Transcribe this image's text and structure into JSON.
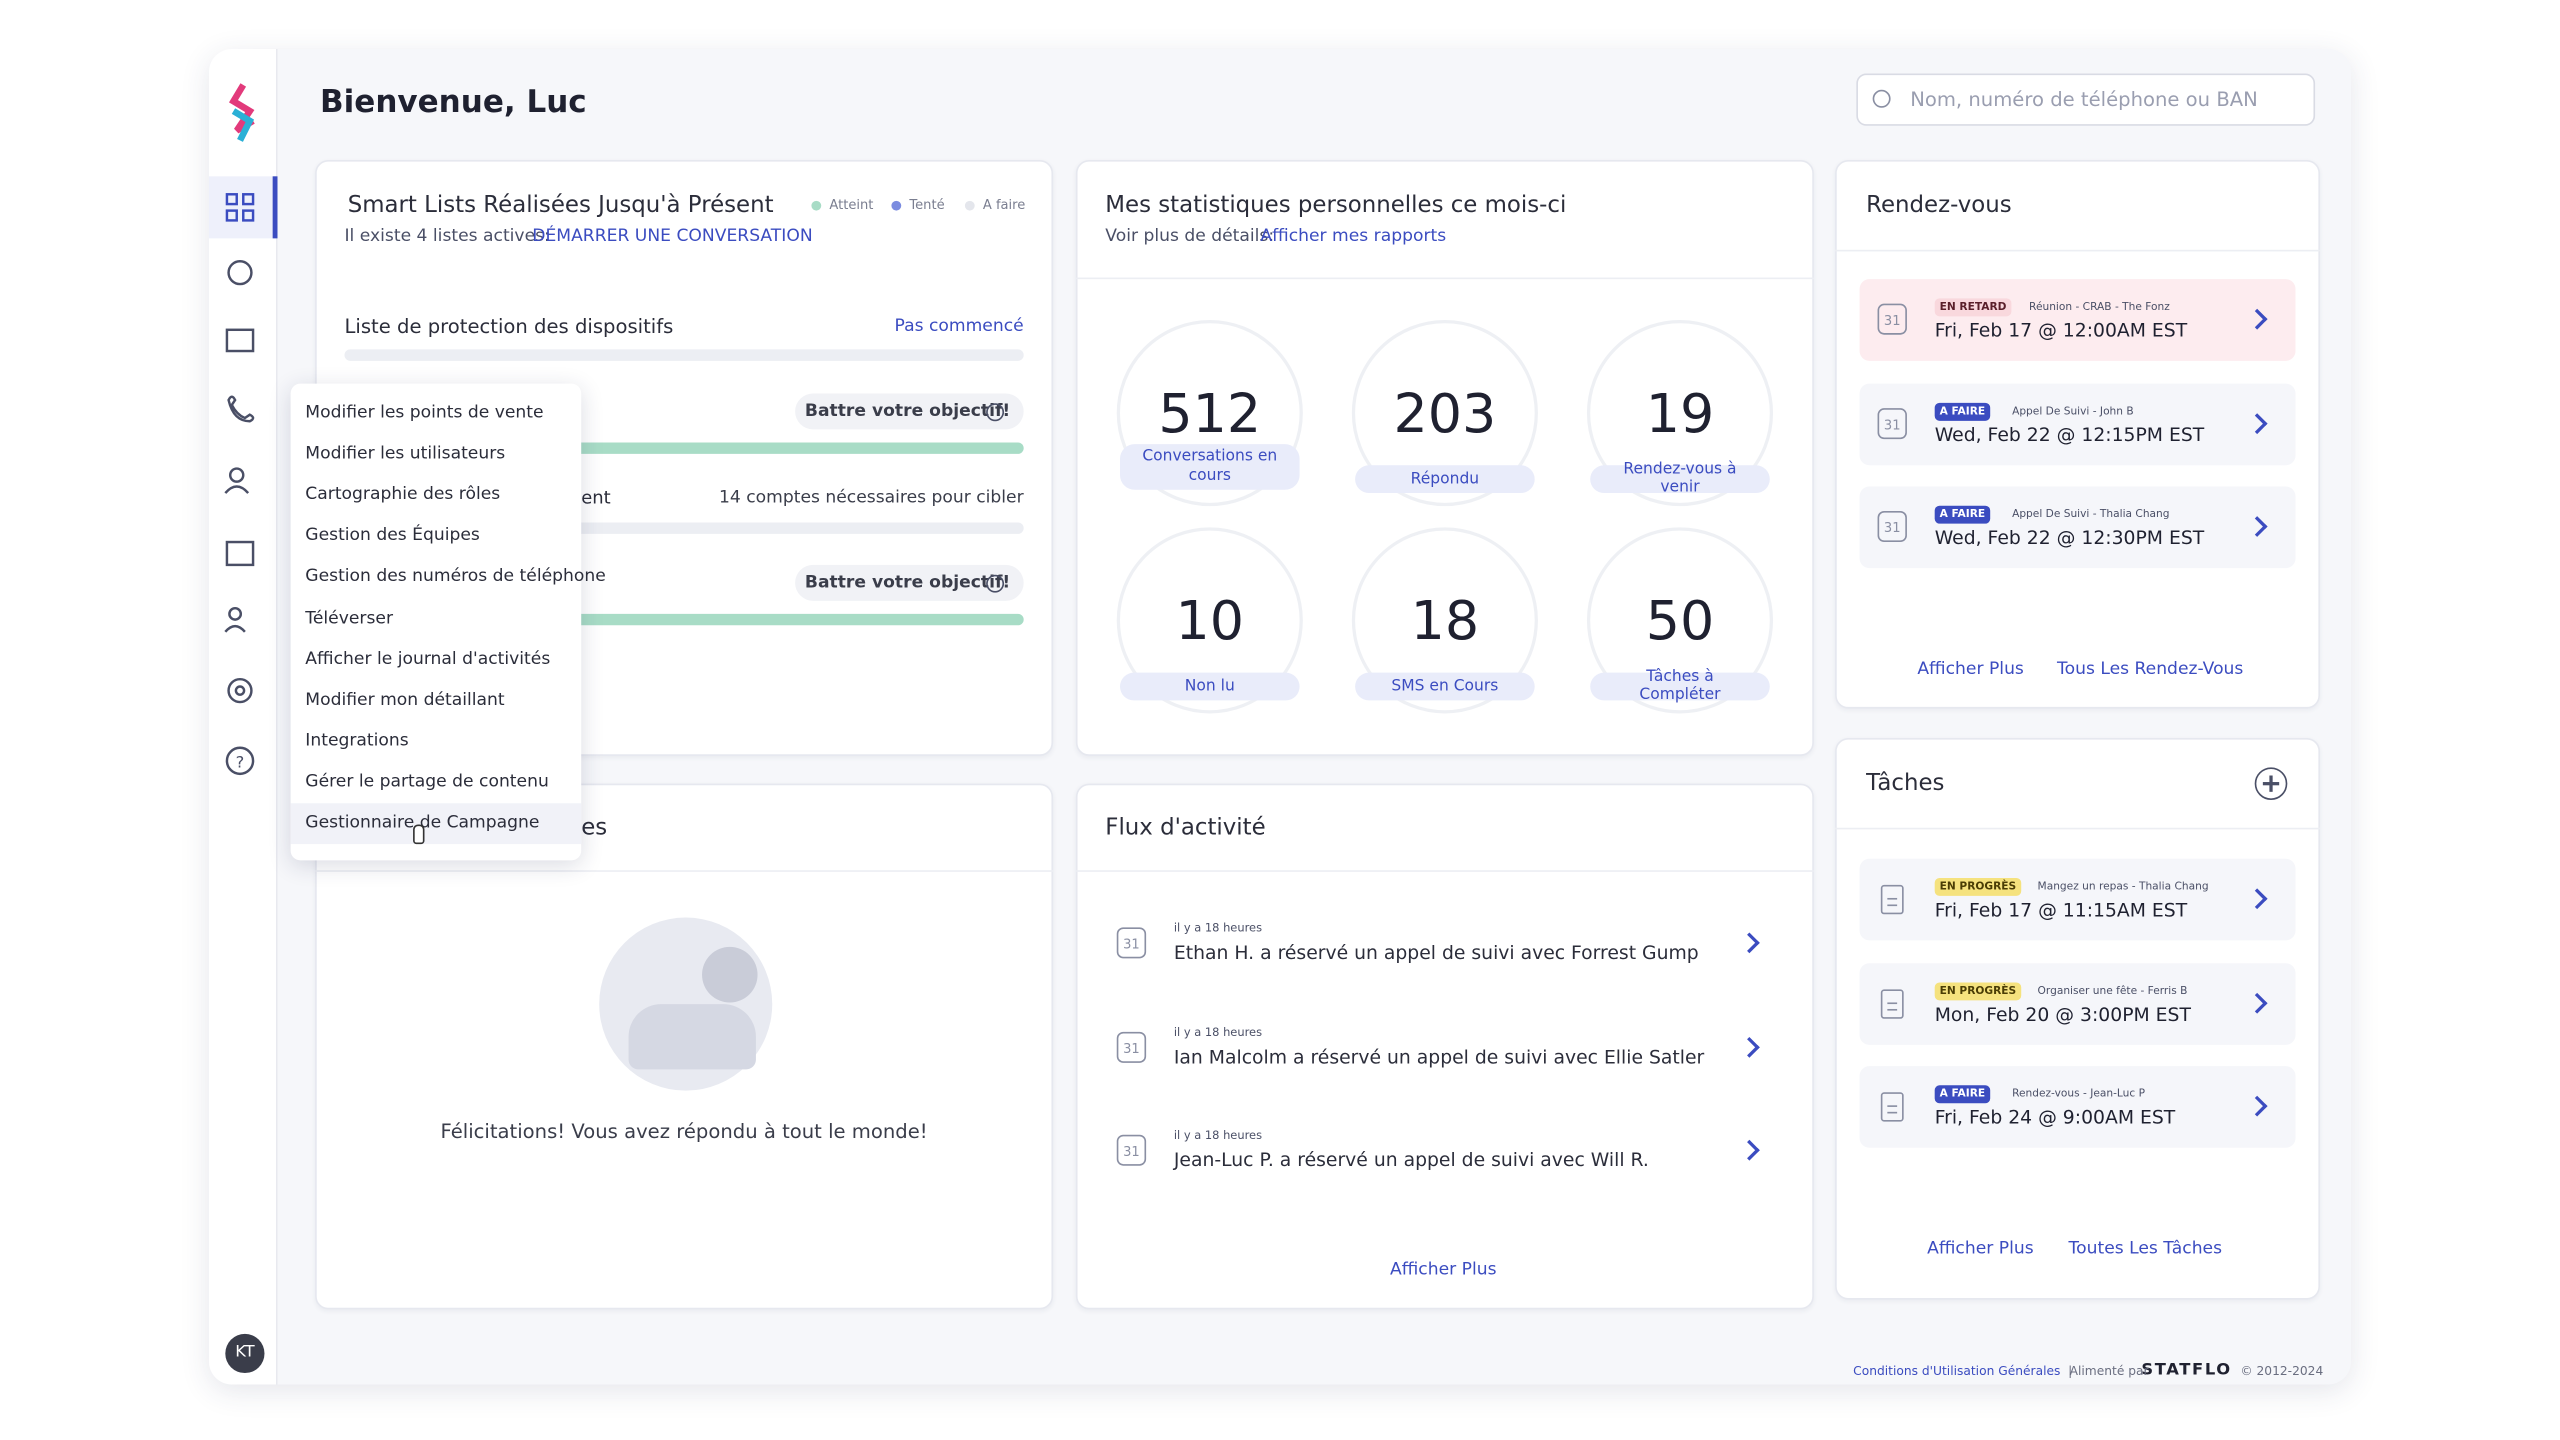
{
  "header": {
    "greeting": "Bienvenue, Luc",
    "search_placeholder": "Nom, numéro de téléphone ou BAN"
  },
  "sidebar": {
    "avatar": "KT"
  },
  "icons": {
    "calendar_day": "31"
  },
  "smart_lists": {
    "title": "Smart Lists Réalisées Jusqu'à Présent",
    "legend": [
      "Atteint",
      "Tenté",
      "A faire"
    ],
    "subtitle": "Il existe 4 listes actives:",
    "link": "DÉMARRER UNE CONVERSATION",
    "items": [
      {
        "name": "Liste de protection des dispositifs",
        "status": "Pas commencé"
      },
      {
        "status": "Battre votre objectif!"
      },
      {
        "name": "ent",
        "status": "14 comptes nécessaires pour cibler"
      },
      {
        "status": "Battre votre objectif!"
      }
    ]
  },
  "menu": {
    "items": [
      "Modifier les points de vente",
      "Modifier les utilisateurs",
      "Cartographie des rôles",
      "Gestion des Équipes",
      "Gestion des numéros de téléphone",
      "Téléverser",
      "Afficher le journal d'activités",
      "Modifier mon détaillant",
      "Integrations",
      "Gérer le partage de contenu",
      "Gestionnaire de Campagne"
    ]
  },
  "unread": {
    "title_fragment": "es",
    "message": "Félicitations! Vous avez répondu à tout le monde!"
  },
  "stats": {
    "title": "Mes statistiques personnelles ce mois-ci",
    "subtitle": "Voir plus de détails:",
    "link": "Afficher mes rapports",
    "tiles": [
      {
        "value": 512,
        "label": "Conversations en cours"
      },
      {
        "value": 203,
        "label": "Répondu"
      },
      {
        "value": 19,
        "label": "Rendez-vous à venir"
      },
      {
        "value": 10,
        "label": "Non lu"
      },
      {
        "value": 18,
        "label": "SMS en Cours"
      },
      {
        "value": 50,
        "label": "Tâches à Compléter"
      }
    ]
  },
  "activity": {
    "title": "Flux d'activité",
    "items": [
      {
        "time": "il y a 18 heures",
        "text": "Ethan H. a réservé un appel de suivi avec Forrest Gump"
      },
      {
        "time": "il y a 18 heures",
        "text": "Ian Malcolm a réservé un appel de suivi avec Ellie Satler"
      },
      {
        "time": "il y a 18 heures",
        "text": "Jean-Luc P. a réservé un appel de suivi avec Will R."
      }
    ],
    "link": "Afficher Plus"
  },
  "appointments": {
    "title": "Rendez-vous",
    "items": [
      {
        "badge": "EN RETARD",
        "desc": "Réunion - CRAB - The Fonz",
        "date": "Fri, Feb 17 @ 12:00AM EST"
      },
      {
        "badge": "A FAIRE",
        "desc": "Appel De Suivi - John B",
        "date": "Wed, Feb 22 @ 12:15PM EST"
      },
      {
        "badge": "A FAIRE",
        "desc": "Appel De Suivi - Thalia Chang",
        "date": "Wed, Feb 22 @ 12:30PM EST"
      }
    ],
    "links": [
      "Afficher Plus",
      "Tous Les Rendez-Vous"
    ]
  },
  "tasks": {
    "title": "Tâches",
    "items": [
      {
        "badge": "EN PROGRÈS",
        "desc": "Mangez un repas - Thalia Chang",
        "date": "Fri, Feb 17 @ 11:15AM EST"
      },
      {
        "badge": "EN PROGRÈS",
        "desc": "Organiser une fête - Ferris B",
        "date": "Mon, Feb 20 @ 3:00PM EST"
      },
      {
        "badge": "A FAIRE",
        "desc": "Rendez-vous - Jean-Luc P",
        "date": "Fri, Feb 24 @ 9:00AM EST"
      }
    ],
    "links": [
      "Afficher Plus",
      "Toutes Les Tâches"
    ]
  },
  "footer": {
    "terms": "Conditions d'Utilisation Générales",
    "separator": "|",
    "powered": "Alimenté par",
    "brand": "STATFLO",
    "copyright": "© 2012-2024"
  }
}
